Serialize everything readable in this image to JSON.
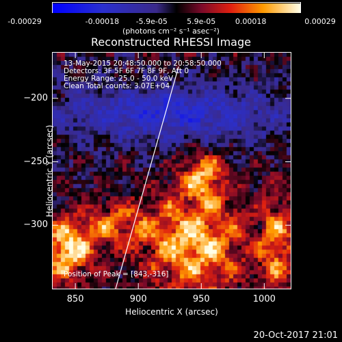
{
  "colorbar": {
    "ticks": [
      "-0.00029",
      "-0.00018",
      "-5.9e-05",
      "5.9e-05",
      "0.00018",
      "0.00029"
    ],
    "unit_label": "(photons cm⁻² s⁻¹ asec⁻²)",
    "min": -0.00029,
    "max": 0.00029
  },
  "chart_data": {
    "type": "heatmap",
    "title": "Reconstructed RHESSI Image",
    "xlabel": "Heliocentric X (arcsec)",
    "ylabel": "Heliocentric Y (arcsec)",
    "xlim": [
      832,
      1021
    ],
    "ylim": [
      -350,
      -164
    ],
    "xticks": [
      850,
      900,
      950,
      1000
    ],
    "yticks": [
      -200,
      -250,
      -300
    ],
    "peak": [
      843,
      -316
    ],
    "limb_line": [
      [
        882,
        -350
      ],
      [
        932,
        -175
      ]
    ],
    "annotations": [
      "13-May-2015 20:48:50.000 to 20:58:50.000",
      "Detectors: 3F 5F 6F 7F 8F 9F, Att 0",
      "Energy Range: 25.0 - 50.0 keV",
      "Clean     Total counts: 3.07E+04"
    ],
    "peak_label": "Position of Peak = [843,-316]"
  },
  "timestamp": "20-Oct-2017 21:01"
}
